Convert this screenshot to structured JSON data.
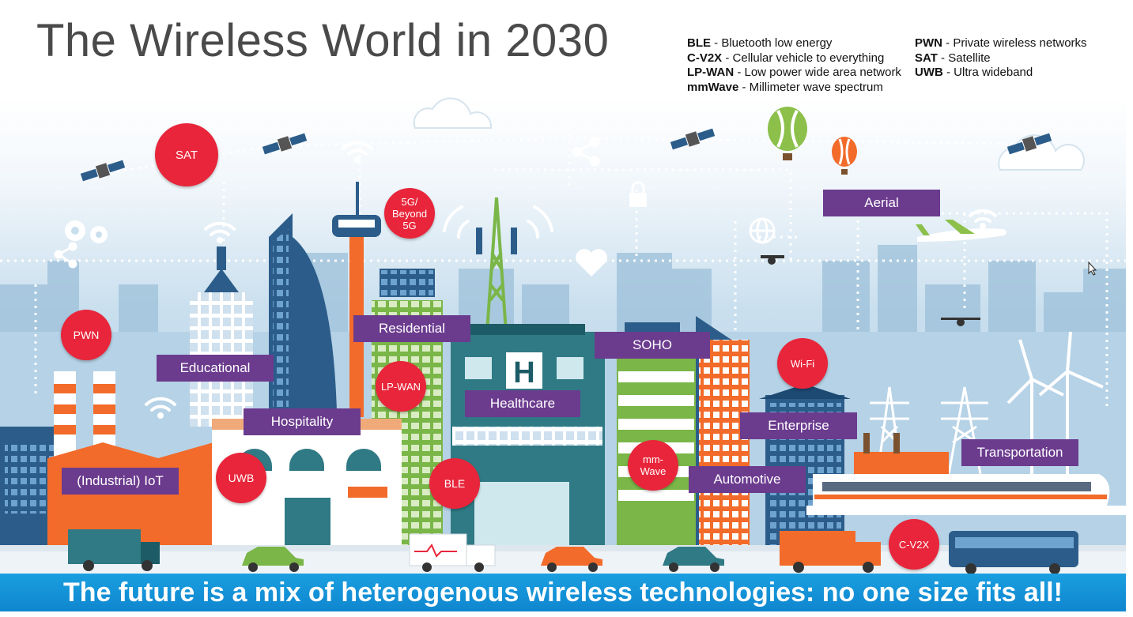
{
  "title": "The Wireless World in 2030",
  "legend": {
    "left": [
      {
        "abbr": "BLE",
        "desc": " - Bluetooth low energy"
      },
      {
        "abbr": "C-V2X",
        "desc": " - Cellular vehicle to everything"
      },
      {
        "abbr": "LP-WAN",
        "desc": " - Low power wide area network"
      },
      {
        "abbr": "mmWave",
        "desc": " - Millimeter wave spectrum"
      }
    ],
    "right": [
      {
        "abbr": "PWN",
        "desc": " - Private wireless networks"
      },
      {
        "abbr": "SAT",
        "desc": " - Satellite"
      },
      {
        "abbr": "UWB",
        "desc": " - Ultra wideband"
      }
    ]
  },
  "labels": {
    "aerial": "Aerial",
    "residential": "Residential",
    "soho": "SOHO",
    "educational": "Educational",
    "healthcare": "Healthcare",
    "hospitality": "Hospitality",
    "enterprise": "Enterprise",
    "transportation": "Transportation",
    "industrial_iot": "(Industrial) IoT",
    "automotive": "Automotive"
  },
  "bubbles": {
    "sat": "SAT",
    "g5_line1": "5G/",
    "g5_line2": "Beyond",
    "g5_line3": "5G",
    "pwn": "PWN",
    "lpwan": "LP-WAN",
    "wifi": "Wi-Fi",
    "uwb": "UWB",
    "ble": "BLE",
    "mm_line1": "mm-",
    "mm_line2": "Wave",
    "cv2x": "C-V2X"
  },
  "banner": "The future is a mix of heterogenous wireless technologies: no one size fits all!",
  "colors": {
    "label_purple": "#6b3b8e",
    "bubble_red": "#e8253a",
    "banner_blue": "#1a9fe0",
    "sky": "#cfe3f0",
    "building_blue": "#2c5d8a",
    "green": "#7ab648",
    "orange": "#f26b2a"
  },
  "icons": [
    "satellite-icon",
    "wifi-icon",
    "cloud-icon",
    "gear-icon",
    "share-icon",
    "lock-icon",
    "heart-icon",
    "globe-icon",
    "drone-icon",
    "hot-air-balloon-icon",
    "airplane-icon",
    "cell-tower-icon",
    "wind-turbine-icon",
    "power-pylon-icon",
    "train-icon",
    "bus-icon",
    "truck-icon",
    "car-icon",
    "ambulance-icon",
    "cursor-icon"
  ]
}
